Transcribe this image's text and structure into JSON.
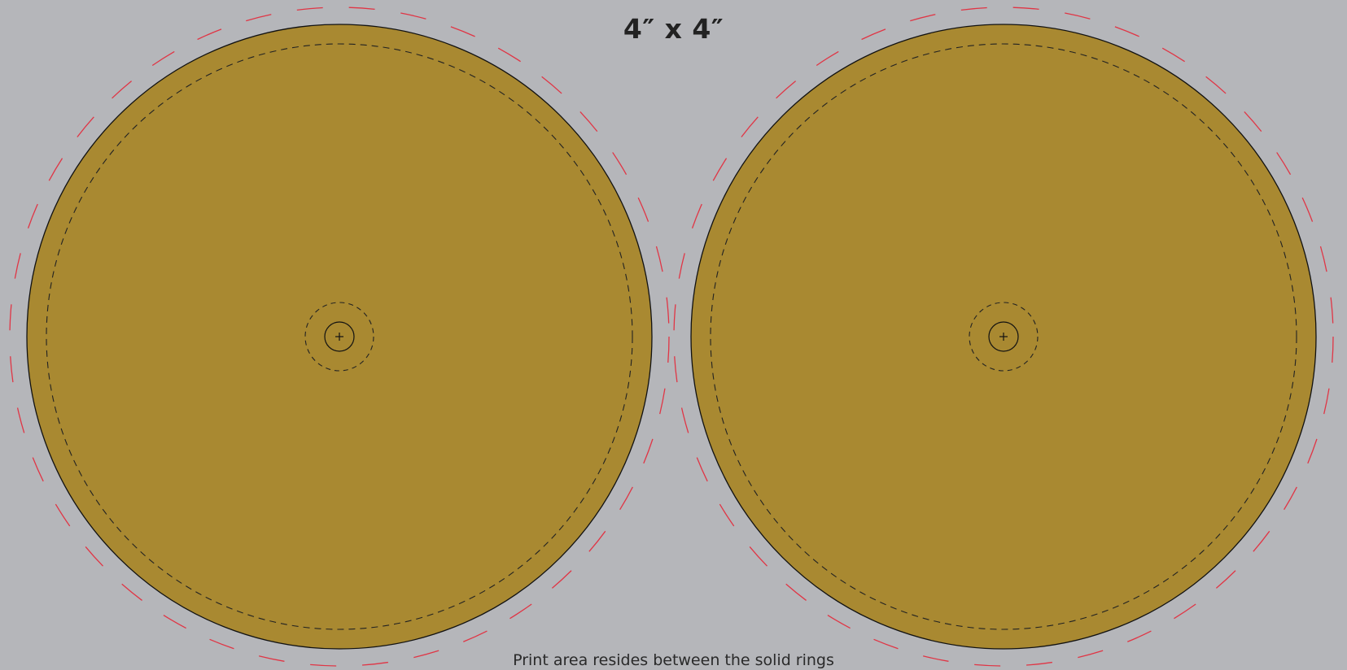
{
  "template": {
    "title": "4″ x 4″",
    "footer_note": "Print area resides between the solid rings",
    "discs": [
      {
        "label": "left"
      },
      {
        "label": "right"
      }
    ]
  },
  "colors": {
    "background": "#b5b6ba",
    "disc_fill": "#a98931",
    "cut_line": "#111111",
    "safe_line": "#222222",
    "bleed_line": "#e03545"
  },
  "icons": {
    "center_mark": "crosshair-icon"
  }
}
